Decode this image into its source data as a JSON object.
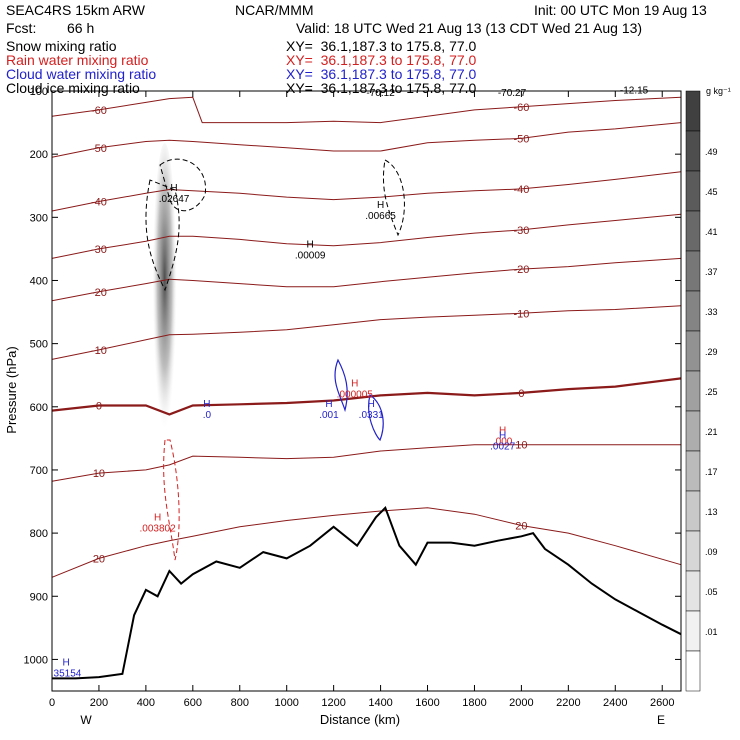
{
  "header": {
    "model": "SEAC4RS 15km ARW",
    "institution": "NCAR/MMM",
    "init": "Init: 00 UTC Mon 19 Aug 13",
    "fcst_label": "Fcst:",
    "fcst_value": "66 h",
    "valid": "Valid: 18 UTC Wed 21 Aug 13 (13 CDT Wed 21 Aug 13)",
    "fields": [
      {
        "name": "Snow mixing ratio",
        "xy": "XY=  36.1,187.3 to 175.8, 77.0",
        "color": "#000000"
      },
      {
        "name": "Rain water mixing ratio",
        "xy": "XY=  36.1,187.3 to 175.8, 77.0",
        "color": "#d42020"
      },
      {
        "name": "Cloud water mixing ratio",
        "xy": "XY=  36.1,187.3 to 175.8, 77.0",
        "color": "#2222cc"
      },
      {
        "name": "Cloud ice mixing ratio",
        "xy": "XY=  36.1,187.3 to 175.8, 77.0",
        "color": "#000000"
      }
    ]
  },
  "chart_data": {
    "type": "cross-section",
    "xlabel": "Distance (km)",
    "ylabel": "Pressure (hPa)",
    "xlim": [
      0,
      2680
    ],
    "ylim": [
      1050,
      100
    ],
    "x_ticks": [
      0,
      200,
      400,
      600,
      800,
      1000,
      1200,
      1400,
      1600,
      1800,
      2000,
      2200,
      2400,
      2600
    ],
    "y_ticks": [
      100,
      200,
      300,
      400,
      500,
      600,
      700,
      800,
      900,
      1000
    ],
    "y_tick_labels": [
      "100",
      "200",
      "300",
      "400",
      "500",
      "600",
      "700",
      "800",
      "900",
      "1000"
    ],
    "endpoints": {
      "left": "W",
      "right": "E"
    },
    "colorbar": {
      "unit": "g kg⁻¹",
      "labels": [
        ".49",
        ".45",
        ".41",
        ".37",
        ".33",
        ".29",
        ".25",
        ".21",
        ".17",
        ".13",
        ".09",
        ".05",
        ".01"
      ]
    },
    "temperature_contours": [
      {
        "label": "-60",
        "color": "#8b1a1a",
        "points": [
          [
            0,
            140
          ],
          [
            200,
            130
          ],
          [
            400,
            118
          ],
          [
            500,
            112
          ],
          [
            600,
            110
          ],
          [
            640,
            150
          ],
          [
            1000,
            150
          ],
          [
            1200,
            148
          ],
          [
            1400,
            150
          ],
          [
            1600,
            140
          ],
          [
            1800,
            130
          ],
          [
            2000,
            125
          ],
          [
            2200,
            120
          ],
          [
            2400,
            115
          ],
          [
            2680,
            110
          ]
        ]
      },
      {
        "label": "-50",
        "color": "#8b1a1a",
        "points": [
          [
            0,
            205
          ],
          [
            200,
            190
          ],
          [
            400,
            180
          ],
          [
            500,
            178
          ],
          [
            600,
            180
          ],
          [
            800,
            185
          ],
          [
            1000,
            190
          ],
          [
            1200,
            195
          ],
          [
            1400,
            195
          ],
          [
            1600,
            182
          ],
          [
            1800,
            178
          ],
          [
            2000,
            175
          ],
          [
            2200,
            165
          ],
          [
            2400,
            160
          ],
          [
            2680,
            150
          ]
        ]
      },
      {
        "label": "-40",
        "color": "#8b1a1a",
        "points": [
          [
            0,
            290
          ],
          [
            200,
            275
          ],
          [
            400,
            262
          ],
          [
            500,
            256
          ],
          [
            600,
            258
          ],
          [
            800,
            262
          ],
          [
            1000,
            268
          ],
          [
            1200,
            272
          ],
          [
            1400,
            268
          ],
          [
            1600,
            262
          ],
          [
            1800,
            258
          ],
          [
            2000,
            255
          ],
          [
            2200,
            248
          ],
          [
            2400,
            240
          ],
          [
            2680,
            228
          ]
        ]
      },
      {
        "label": "-30",
        "color": "#8b1a1a",
        "points": [
          [
            0,
            365
          ],
          [
            200,
            350
          ],
          [
            400,
            338
          ],
          [
            500,
            330
          ],
          [
            600,
            330
          ],
          [
            800,
            335
          ],
          [
            1000,
            342
          ],
          [
            1200,
            345
          ],
          [
            1400,
            340
          ],
          [
            1600,
            332
          ],
          [
            1800,
            325
          ],
          [
            2000,
            320
          ],
          [
            2200,
            312
          ],
          [
            2400,
            305
          ],
          [
            2680,
            295
          ]
        ]
      },
      {
        "label": "-20",
        "color": "#8b1a1a",
        "points": [
          [
            0,
            432
          ],
          [
            200,
            418
          ],
          [
            400,
            405
          ],
          [
            500,
            398
          ],
          [
            600,
            400
          ],
          [
            800,
            405
          ],
          [
            1000,
            410
          ],
          [
            1200,
            410
          ],
          [
            1400,
            402
          ],
          [
            1600,
            395
          ],
          [
            1800,
            388
          ],
          [
            2000,
            382
          ],
          [
            2200,
            378
          ],
          [
            2400,
            372
          ],
          [
            2680,
            365
          ]
        ]
      },
      {
        "label": "-10",
        "color": "#8b1a1a",
        "points": [
          [
            0,
            525
          ],
          [
            200,
            510
          ],
          [
            400,
            494
          ],
          [
            500,
            486
          ],
          [
            600,
            485
          ],
          [
            800,
            482
          ],
          [
            1000,
            478
          ],
          [
            1200,
            470
          ],
          [
            1400,
            462
          ],
          [
            1600,
            458
          ],
          [
            1800,
            455
          ],
          [
            2000,
            452
          ],
          [
            2200,
            448
          ],
          [
            2400,
            446
          ],
          [
            2680,
            440
          ]
        ]
      },
      {
        "label": "0",
        "color": "#8b1a1a",
        "points": [
          [
            0,
            606
          ],
          [
            200,
            598
          ],
          [
            400,
            598
          ],
          [
            500,
            612
          ],
          [
            600,
            598
          ],
          [
            800,
            596
          ],
          [
            1000,
            594
          ],
          [
            1200,
            590
          ],
          [
            1400,
            582
          ],
          [
            1600,
            578
          ],
          [
            1800,
            582
          ],
          [
            2000,
            578
          ],
          [
            2200,
            572
          ],
          [
            2400,
            568
          ],
          [
            2680,
            555
          ]
        ]
      },
      {
        "label": "10",
        "color": "#8b1a1a",
        "points": [
          [
            0,
            718
          ],
          [
            200,
            705
          ],
          [
            400,
            700
          ],
          [
            500,
            692
          ],
          [
            600,
            678
          ],
          [
            800,
            680
          ],
          [
            1000,
            682
          ],
          [
            1200,
            680
          ],
          [
            1400,
            670
          ],
          [
            1600,
            665
          ],
          [
            1800,
            660
          ],
          [
            2000,
            660
          ],
          [
            2200,
            660
          ],
          [
            2400,
            660
          ],
          [
            2680,
            660
          ]
        ]
      },
      {
        "label": "20",
        "color": "#8b1a1a",
        "points": [
          [
            0,
            870
          ],
          [
            200,
            840
          ],
          [
            400,
            820
          ],
          [
            500,
            812
          ],
          [
            600,
            805
          ],
          [
            800,
            790
          ],
          [
            1000,
            780
          ],
          [
            1200,
            772
          ],
          [
            1400,
            765
          ],
          [
            1600,
            760
          ],
          [
            1800,
            770
          ],
          [
            2000,
            788
          ],
          [
            2200,
            800
          ],
          [
            2400,
            820
          ],
          [
            2680,
            850
          ]
        ]
      }
    ],
    "terrain_pressure_hPa": [
      [
        0,
        1030
      ],
      [
        100,
        1030
      ],
      [
        200,
        1028
      ],
      [
        300,
        1023
      ],
      [
        350,
        930
      ],
      [
        400,
        890
      ],
      [
        450,
        900
      ],
      [
        500,
        860
      ],
      [
        550,
        880
      ],
      [
        600,
        865
      ],
      [
        700,
        845
      ],
      [
        800,
        855
      ],
      [
        900,
        830
      ],
      [
        1000,
        840
      ],
      [
        1100,
        820
      ],
      [
        1200,
        790
      ],
      [
        1300,
        820
      ],
      [
        1380,
        775
      ],
      [
        1420,
        760
      ],
      [
        1480,
        820
      ],
      [
        1550,
        850
      ],
      [
        1600,
        815
      ],
      [
        1700,
        815
      ],
      [
        1800,
        820
      ],
      [
        1900,
        812
      ],
      [
        2000,
        805
      ],
      [
        2050,
        800
      ],
      [
        2100,
        825
      ],
      [
        2200,
        850
      ],
      [
        2300,
        880
      ],
      [
        2400,
        905
      ],
      [
        2500,
        925
      ],
      [
        2600,
        945
      ],
      [
        2680,
        960
      ]
    ],
    "annotations": [
      {
        "text": "H",
        "value": ".02647",
        "x": 520,
        "y": 258,
        "color": "#000000"
      },
      {
        "text": "H",
        "value": ".00665",
        "x": 1400,
        "y": 285,
        "color": "#000000"
      },
      {
        "text": "H",
        "value": ".00009",
        "x": 1100,
        "y": 348,
        "color": "#000000"
      },
      {
        "text": "H",
        "value": ".0",
        "x": 660,
        "y": 600,
        "color": "#2222cc"
      },
      {
        "text": "H",
        "value": ".001",
        "x": 1180,
        "y": 600,
        "color": "#2222cc"
      },
      {
        "text": "H",
        "value": ".0331",
        "x": 1360,
        "y": 600,
        "color": "#2222cc"
      },
      {
        "text": "H",
        "value": ".000005",
        "x": 1290,
        "y": 568,
        "color": "#d42020"
      },
      {
        "text": "H",
        "value": ".000",
        "x": 1920,
        "y": 642,
        "color": "#d42020"
      },
      {
        "text": "H",
        "value": ".0027",
        "x": 1920,
        "y": 650,
        "color": "#2222cc"
      },
      {
        "text": "H",
        "value": ".003802",
        "x": 450,
        "y": 780,
        "color": "#d42020"
      },
      {
        "text": "H",
        "value": ".35154",
        "x": 60,
        "y": 1010,
        "color": "#2222cc"
      }
    ],
    "high_level_labels": [
      "-70.12",
      "-70.27",
      "-12.15"
    ]
  }
}
